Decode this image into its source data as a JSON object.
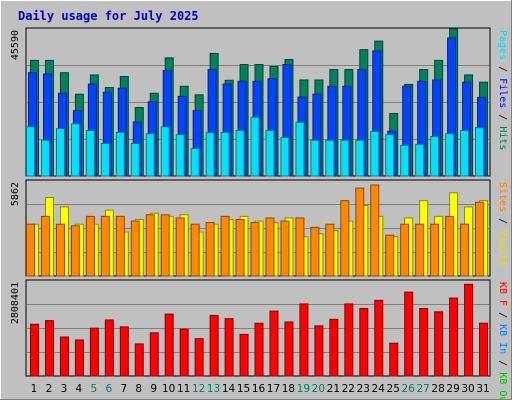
{
  "chart_data": [
    {
      "title": "Daily usage for July 2025",
      "type": "bar",
      "categories": [
        "1",
        "2",
        "3",
        "4",
        "5",
        "6",
        "7",
        "8",
        "9",
        "10",
        "11",
        "12",
        "13",
        "14",
        "15",
        "16",
        "17",
        "18",
        "19",
        "20",
        "21",
        "22",
        "23",
        "24",
        "25",
        "26",
        "27",
        "28",
        "29",
        "30",
        "31"
      ],
      "weekend_days": [
        "5",
        "6",
        "12",
        "13",
        "19",
        "20",
        "26",
        "27"
      ],
      "panels": [
        {
          "ymax_label": "45590",
          "ylim": [
            0,
            45590
          ],
          "right_labels": [
            {
              "text": "Pages",
              "color": "#00e0ff"
            },
            {
              "text": " / ",
              "color": "#000000"
            },
            {
              "text": "Files",
              "color": "#0000ff"
            },
            {
              "text": " / ",
              "color": "#000000"
            },
            {
              "text": "Hits",
              "color": "#008040"
            }
          ],
          "series": [
            {
              "name": "Hits",
              "color": "#00805c",
              "values": [
                36600,
                36600,
                32700,
                25900,
                32000,
                28000,
                31500,
                21700,
                26200,
                37400,
                28400,
                25700,
                38800,
                30300,
                35300,
                35300,
                34700,
                36900,
                30400,
                30400,
                33700,
                33700,
                40000,
                42700,
                19800,
                29000,
                33700,
                36600,
                46600,
                32000,
                29700
              ]
            },
            {
              "name": "Files",
              "color": "#0044ff",
              "values": [
                32700,
                32300,
                26200,
                20700,
                29100,
                26500,
                27800,
                17100,
                23500,
                33400,
                25200,
                20700,
                33700,
                29100,
                30000,
                30000,
                30800,
                35300,
                25000,
                25900,
                28400,
                28400,
                33700,
                39600,
                14200,
                28400,
                30000,
                30400,
                43700,
                29700,
                24900
              ]
            },
            {
              "name": "Pages",
              "color": "#00e0ff",
              "values": [
                15600,
                11300,
                15000,
                16500,
                14400,
                10300,
                13800,
                10300,
                13400,
                15600,
                13100,
                8700,
                13700,
                13800,
                14400,
                18600,
                14400,
                12200,
                17000,
                11300,
                11300,
                11300,
                11300,
                14100,
                13100,
                9700,
                10000,
                12500,
                13400,
                14400,
                15300
              ]
            }
          ]
        },
        {
          "ymax_label": "5862",
          "ylim": [
            0,
            5862
          ],
          "right_labels": [
            {
              "text": "Sites",
              "color": "#ff8000"
            },
            {
              "text": " / ",
              "color": "#000000"
            },
            {
              "text": "Visits",
              "color": "#e0e000"
            }
          ],
          "series": [
            {
              "name": "Visits",
              "color": "#ffff00",
              "values": [
                3300,
                5000,
                4400,
                3300,
                3300,
                4200,
                2800,
                3600,
                4000,
                3800,
                3900,
                2800,
                3300,
                3600,
                3800,
                3500,
                3400,
                3700,
                2500,
                2700,
                2900,
                3500,
                4500,
                3800,
                2500,
                3700,
                4800,
                3800,
                5300,
                4400,
                4800
              ]
            },
            {
              "name": "Sites",
              "color": "#ff8800",
              "values": [
                3300,
                3800,
                3300,
                3200,
                3800,
                3800,
                3800,
                3500,
                3900,
                3900,
                3700,
                3300,
                3400,
                3800,
                3600,
                3400,
                3700,
                3500,
                3700,
                3100,
                3300,
                4800,
                5600,
                5800,
                2600,
                3300,
                3300,
                3300,
                3800,
                3300,
                4700
              ]
            }
          ]
        },
        {
          "ymax_label": "2808401",
          "ylim": [
            0,
            2808401
          ],
          "right_labels": [
            {
              "text": "KB F",
              "color": "#ff0000"
            },
            {
              "text": " / ",
              "color": "#000000"
            },
            {
              "text": "KB In",
              "color": "#0080ff"
            },
            {
              "text": " / ",
              "color": "#000000"
            },
            {
              "text": "KB Out",
              "color": "#00c000"
            }
          ],
          "series": [
            {
              "name": "KB F",
              "color": "#ff0000",
              "values": [
                1580000,
                1690000,
                1190000,
                1100000,
                1460000,
                1710000,
                1500000,
                980000,
                1320000,
                1890000,
                1430000,
                1140000,
                1850000,
                1750000,
                1270000,
                1610000,
                1980000,
                1650000,
                2200000,
                1530000,
                1730000,
                2200000,
                2060000,
                2310000,
                1000000,
                2560000,
                2060000,
                1960000,
                2380000,
                2800000,
                1610000
              ]
            }
          ]
        }
      ]
    }
  ]
}
